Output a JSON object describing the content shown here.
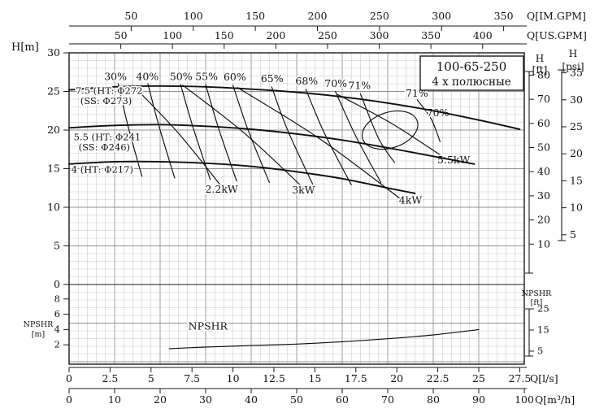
{
  "title_box": {
    "model": "100-65-250",
    "poles": "4 х полюсные"
  },
  "chart_data": {
    "type": "line",
    "title": "100-65-250 centrifugal pump performance chart (4-pole)",
    "grid": "on",
    "axes": {
      "q_im_gpm": {
        "title": "Q[IM.GPM]",
        "ticks": [
          50,
          100,
          150,
          200,
          250,
          300,
          350
        ]
      },
      "q_us_gpm": {
        "title": "Q[US.GPM]",
        "ticks": [
          50,
          100,
          150,
          200,
          250,
          300,
          350,
          400
        ]
      },
      "q_lps": {
        "title": "Q[l/s]",
        "ticks": [
          0,
          2.5,
          5,
          7.5,
          10,
          12.5,
          15,
          17.5,
          20,
          22.5,
          25,
          27.5
        ]
      },
      "q_m3h": {
        "title": "Q[m³/h]",
        "ticks": [
          0,
          10,
          20,
          30,
          40,
          50,
          60,
          70,
          80,
          90,
          100
        ],
        "range": [
          0,
          100
        ]
      },
      "h_m": {
        "title": "H[m]",
        "ticks": [
          0,
          5,
          10,
          15,
          20,
          25,
          30
        ],
        "range": [
          0,
          30
        ]
      },
      "h_ft": {
        "title_lines": [
          "H",
          "[ft]"
        ],
        "ticks": [
          80,
          70,
          60,
          50,
          40,
          30,
          20,
          10
        ]
      },
      "h_psi": {
        "title_lines": [
          "H",
          "[psi]"
        ],
        "ticks": [
          35,
          30,
          25,
          20,
          15,
          10,
          5
        ]
      },
      "npshr_m": {
        "title_lines": [
          "NPSHR",
          "[m]"
        ],
        "ticks": [
          8,
          6,
          4,
          2
        ]
      },
      "npshr_ft": {
        "title_lines": [
          "NPSHR",
          "[ft]"
        ],
        "ticks": [
          25,
          15,
          5
        ]
      }
    },
    "head_curves": [
      {
        "name": "impeller-272",
        "label_lines": [
          "7.5 (HT: Φ272",
          "(SS: Φ273)"
        ],
        "label_pos": [
          1.4,
          24.7
        ],
        "points": [
          [
            0,
            25.2
          ],
          [
            10,
            25.6
          ],
          [
            20,
            25.7
          ],
          [
            30,
            25.6
          ],
          [
            40,
            25.3
          ],
          [
            50,
            24.9
          ],
          [
            60,
            24.3
          ],
          [
            70,
            23.5
          ],
          [
            80,
            22.5
          ],
          [
            90,
            21.3
          ],
          [
            99,
            20.1
          ]
        ]
      },
      {
        "name": "impeller-241",
        "label_lines": [
          "5.5 (HT: Φ241",
          "(SS: Φ246)"
        ],
        "label_pos": [
          1.0,
          18.7
        ],
        "points": [
          [
            0,
            20.3
          ],
          [
            10,
            20.6
          ],
          [
            20,
            20.7
          ],
          [
            30,
            20.5
          ],
          [
            40,
            20.1
          ],
          [
            50,
            19.5
          ],
          [
            60,
            18.7
          ],
          [
            70,
            17.7
          ],
          [
            80,
            16.6
          ],
          [
            89,
            15.6
          ]
        ]
      },
      {
        "name": "impeller-217",
        "label_lines": [
          "4 (HT: Φ217)"
        ],
        "label_pos": [
          0.5,
          14.5
        ],
        "points": [
          [
            0,
            15.6
          ],
          [
            10,
            15.9
          ],
          [
            20,
            15.9
          ],
          [
            30,
            15.7
          ],
          [
            40,
            15.3
          ],
          [
            50,
            14.6
          ],
          [
            60,
            13.7
          ],
          [
            70,
            12.5
          ],
          [
            76,
            11.8
          ]
        ]
      }
    ],
    "efficiency_curves": [
      {
        "label": "30%",
        "label_pos": [
          10.2,
          26.5
        ],
        "points": [
          [
            10.8,
            26.0
          ],
          [
            13.0,
            20.4
          ],
          [
            16.0,
            14.0
          ]
        ]
      },
      {
        "label": "40%",
        "label_pos": [
          17.2,
          26.5
        ],
        "points": [
          [
            17.3,
            26.0
          ],
          [
            19.8,
            20.4
          ],
          [
            23.2,
            13.8
          ]
        ]
      },
      {
        "label": "50%",
        "label_pos": [
          24.6,
          26.5
        ],
        "points": [
          [
            24.5,
            25.9
          ],
          [
            27.2,
            20.4
          ],
          [
            31.0,
            13.6
          ]
        ]
      },
      {
        "label": "55%",
        "label_pos": [
          30.2,
          26.5
        ],
        "points": [
          [
            30.0,
            25.9
          ],
          [
            32.8,
            20.3
          ],
          [
            36.8,
            13.4
          ]
        ]
      },
      {
        "label": "60%",
        "label_pos": [
          36.4,
          26.4
        ],
        "points": [
          [
            36.0,
            25.8
          ],
          [
            39.2,
            20.2
          ],
          [
            44.0,
            13.2
          ]
        ]
      },
      {
        "label": "65%",
        "label_pos": [
          44.6,
          26.2
        ],
        "points": [
          [
            44.5,
            25.6
          ],
          [
            48.0,
            20.0
          ],
          [
            53.5,
            13.0
          ]
        ]
      },
      {
        "label": "68%",
        "label_pos": [
          52.2,
          25.9
        ],
        "points": [
          [
            52.0,
            25.3
          ],
          [
            56.0,
            19.7
          ],
          [
            62.0,
            12.9
          ]
        ]
      },
      {
        "label": "70%",
        "label_pos": [
          58.6,
          25.6
        ],
        "points": [
          [
            58.5,
            25.0
          ],
          [
            63.0,
            19.2
          ],
          [
            68.5,
            13.2
          ]
        ]
      },
      {
        "label": "71%",
        "label_pos": [
          63.8,
          25.3
        ],
        "points": [
          [
            64.0,
            24.7
          ],
          [
            68.0,
            18.9
          ],
          [
            71.5,
            15.8
          ]
        ]
      },
      {
        "label": "70%",
        "label_pos": [
          81.0,
          21.8
        ],
        "points": [
          [
            76.5,
            23.9
          ],
          [
            79.5,
            21.5
          ],
          [
            81.5,
            18.5
          ]
        ]
      }
    ],
    "efficiency_island": {
      "label": "71%",
      "label_pos": [
        76.4,
        24.3
      ],
      "center": [
        70.5,
        20.0
      ],
      "rx": 6.3,
      "ry": 2.3,
      "rotate": -18
    },
    "power_curves": [
      {
        "label": "2.2kW",
        "label_pos": [
          33.5,
          11.9
        ],
        "points": [
          [
            14,
            25.8
          ],
          [
            24,
            19.6
          ],
          [
            34,
            12.3
          ]
        ]
      },
      {
        "label": "3kW",
        "label_pos": [
          51.5,
          11.8
        ],
        "points": [
          [
            25,
            25.8
          ],
          [
            38.5,
            19.6
          ],
          [
            52,
            12.2
          ]
        ]
      },
      {
        "label": "4kW",
        "label_pos": [
          75.0,
          10.5
        ],
        "points": [
          [
            37,
            25.5
          ],
          [
            55,
            18.9
          ],
          [
            73,
            11.0
          ]
        ]
      },
      {
        "label": "5.5kW",
        "label_pos": [
          84.5,
          15.7
        ],
        "points": [
          [
            59,
            24.6
          ],
          [
            71,
            20.8
          ],
          [
            83,
            16.2
          ]
        ]
      }
    ],
    "npshr_curve": {
      "label": "NPSHR",
      "label_pos": [
        30.5,
        4.0
      ],
      "points": [
        [
          22,
          1.5
        ],
        [
          30,
          1.7
        ],
        [
          40,
          1.9
        ],
        [
          50,
          2.1
        ],
        [
          60,
          2.4
        ],
        [
          70,
          2.8
        ],
        [
          80,
          3.3
        ],
        [
          90,
          4.0
        ]
      ]
    }
  }
}
